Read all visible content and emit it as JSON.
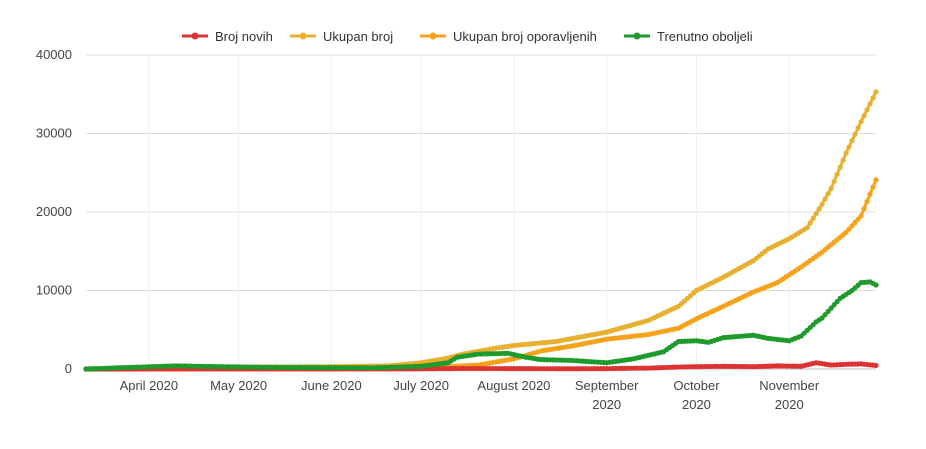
{
  "chart_data": {
    "type": "line",
    "title": "",
    "xlabel": "",
    "ylabel": "",
    "ylim": [
      0,
      40000
    ],
    "y_ticks": [
      "0",
      "10000",
      "20000",
      "30000",
      "40000"
    ],
    "x_range": [
      "2020-03-11",
      "2020-11-30"
    ],
    "x_ticks": [
      {
        "date": "2020-04-01",
        "lines": [
          "April 2020"
        ]
      },
      {
        "date": "2020-05-01",
        "lines": [
          "May 2020"
        ]
      },
      {
        "date": "2020-06-01",
        "lines": [
          "June 2020"
        ]
      },
      {
        "date": "2020-07-01",
        "lines": [
          "July 2020"
        ]
      },
      {
        "date": "2020-08-01",
        "lines": [
          "August 2020"
        ]
      },
      {
        "date": "2020-09-01",
        "lines": [
          "September",
          "2020"
        ]
      },
      {
        "date": "2020-10-01",
        "lines": [
          "October",
          "2020"
        ]
      },
      {
        "date": "2020-11-01",
        "lines": [
          "November",
          "2020"
        ]
      }
    ],
    "grid": "horizontal-and-vertical",
    "legend_position": "top",
    "series": [
      {
        "name": "Broj novih",
        "color": "#dc3232",
        "points": [
          [
            "2020-03-11",
            0
          ],
          [
            "2020-06-30",
            20
          ],
          [
            "2020-07-15",
            60
          ],
          [
            "2020-08-01",
            50
          ],
          [
            "2020-08-20",
            30
          ],
          [
            "2020-09-01",
            50
          ],
          [
            "2020-09-15",
            120
          ],
          [
            "2020-09-25",
            250
          ],
          [
            "2020-10-01",
            300
          ],
          [
            "2020-10-10",
            350
          ],
          [
            "2020-10-20",
            300
          ],
          [
            "2020-10-28",
            400
          ],
          [
            "2020-11-05",
            350
          ],
          [
            "2020-11-10",
            800
          ],
          [
            "2020-11-15",
            500
          ],
          [
            "2020-11-20",
            600
          ],
          [
            "2020-11-25",
            650
          ],
          [
            "2020-11-30",
            450
          ]
        ]
      },
      {
        "name": "Ukupan broj",
        "color": "#e8b030",
        "points": [
          [
            "2020-03-11",
            0
          ],
          [
            "2020-04-01",
            100
          ],
          [
            "2020-05-01",
            250
          ],
          [
            "2020-06-01",
            300
          ],
          [
            "2020-06-20",
            400
          ],
          [
            "2020-07-01",
            800
          ],
          [
            "2020-07-10",
            1400
          ],
          [
            "2020-07-15",
            1900
          ],
          [
            "2020-07-25",
            2600
          ],
          [
            "2020-08-01",
            3000
          ],
          [
            "2020-08-15",
            3500
          ],
          [
            "2020-09-01",
            4700
          ],
          [
            "2020-09-15",
            6200
          ],
          [
            "2020-09-25",
            8000
          ],
          [
            "2020-10-01",
            10000
          ],
          [
            "2020-10-10",
            11700
          ],
          [
            "2020-10-20",
            13800
          ],
          [
            "2020-10-25",
            15300
          ],
          [
            "2020-11-01",
            16600
          ],
          [
            "2020-11-07",
            18000
          ],
          [
            "2020-11-12",
            21000
          ],
          [
            "2020-11-15",
            23000
          ],
          [
            "2020-11-20",
            27500
          ],
          [
            "2020-11-25",
            31500
          ],
          [
            "2020-11-30",
            35300
          ]
        ]
      },
      {
        "name": "Ukupan broj oporavljenih",
        "color": "#f7a21b",
        "points": [
          [
            "2020-03-11",
            0
          ],
          [
            "2020-06-01",
            0
          ],
          [
            "2020-07-01",
            150
          ],
          [
            "2020-07-20",
            500
          ],
          [
            "2020-08-01",
            1300
          ],
          [
            "2020-08-10",
            2300
          ],
          [
            "2020-08-20",
            2900
          ],
          [
            "2020-09-01",
            3800
          ],
          [
            "2020-09-15",
            4400
          ],
          [
            "2020-09-25",
            5200
          ],
          [
            "2020-10-01",
            6400
          ],
          [
            "2020-10-10",
            8000
          ],
          [
            "2020-10-20",
            9800
          ],
          [
            "2020-10-28",
            11000
          ],
          [
            "2020-11-05",
            13000
          ],
          [
            "2020-11-12",
            14900
          ],
          [
            "2020-11-20",
            17400
          ],
          [
            "2020-11-25",
            19500
          ],
          [
            "2020-11-30",
            24100
          ]
        ]
      },
      {
        "name": "Trenutno oboljeli",
        "color": "#1f9a2c",
        "points": [
          [
            "2020-03-11",
            0
          ],
          [
            "2020-03-25",
            200
          ],
          [
            "2020-04-10",
            400
          ],
          [
            "2020-04-25",
            300
          ],
          [
            "2020-05-15",
            200
          ],
          [
            "2020-06-15",
            150
          ],
          [
            "2020-07-01",
            350
          ],
          [
            "2020-07-10",
            800
          ],
          [
            "2020-07-13",
            1500
          ],
          [
            "2020-07-20",
            1900
          ],
          [
            "2020-07-30",
            2000
          ],
          [
            "2020-08-05",
            1500
          ],
          [
            "2020-08-10",
            1200
          ],
          [
            "2020-08-20",
            1100
          ],
          [
            "2020-09-01",
            800
          ],
          [
            "2020-09-10",
            1300
          ],
          [
            "2020-09-20",
            2200
          ],
          [
            "2020-09-25",
            3500
          ],
          [
            "2020-10-01",
            3600
          ],
          [
            "2020-10-05",
            3400
          ],
          [
            "2020-10-10",
            4000
          ],
          [
            "2020-10-20",
            4300
          ],
          [
            "2020-10-25",
            3900
          ],
          [
            "2020-11-01",
            3600
          ],
          [
            "2020-11-05",
            4200
          ],
          [
            "2020-11-10",
            6000
          ],
          [
            "2020-11-12",
            6500
          ],
          [
            "2020-11-18",
            9000
          ],
          [
            "2020-11-22",
            10000
          ],
          [
            "2020-11-25",
            11000
          ],
          [
            "2020-11-28",
            11100
          ],
          [
            "2020-11-30",
            10700
          ]
        ]
      }
    ]
  }
}
